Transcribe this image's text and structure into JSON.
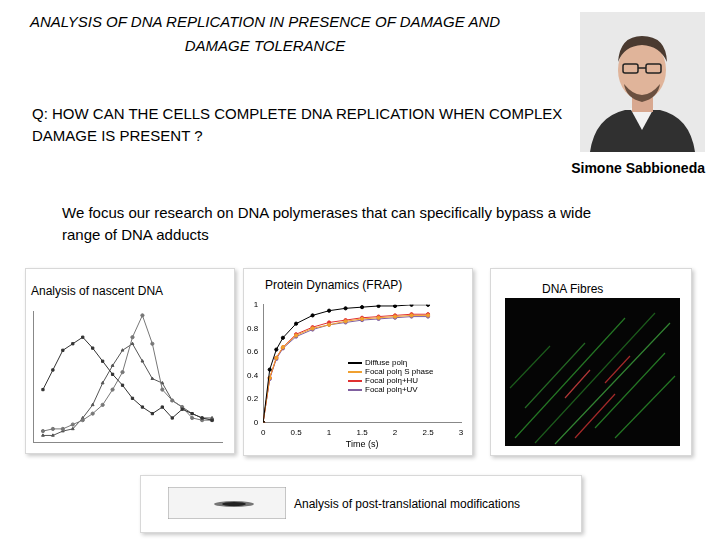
{
  "title": "ANALYSIS OF DNA REPLICATION IN PRESENCE OF DAMAGE AND DAMAGE TOLERANCE",
  "question": "Q: HOW CAN THE CELLS COMPLETE DNA REPLICATION WHEN COMPLEX DAMAGE IS PRESENT ?",
  "author": "Simone Sabbioneda",
  "description": "We focus our research on DNA polymerases that can specifically bypass a wide range of DNA adducts",
  "panels": {
    "fibres": "DNA Fibres",
    "blot": "Analysis  of post-translational modifications"
  },
  "chart_data": [
    {
      "type": "line",
      "title": "Analysis of nascent DNA",
      "x": [
        1,
        2,
        3,
        4,
        5,
        6,
        7,
        8,
        9,
        10,
        11,
        12,
        13,
        14,
        15,
        16,
        17,
        18
      ],
      "xlim": [
        0,
        19
      ],
      "xticks": [
        1,
        2,
        3,
        4,
        5,
        6,
        7,
        8,
        9,
        10,
        11,
        12,
        13,
        14,
        15,
        16,
        17,
        18
      ],
      "ylim": [
        0,
        6
      ],
      "yticks": [
        0,
        1,
        2,
        3,
        4,
        5,
        6
      ],
      "tick_labels": false,
      "grid": false,
      "series": [
        {
          "color": "#333333",
          "marker": "square",
          "values": [
            2.4,
            3.3,
            4.2,
            4.5,
            4.8,
            4.3,
            3.7,
            3.1,
            2.6,
            2.0,
            1.6,
            1.3,
            1.6,
            1.1,
            1.5,
            1.3,
            1.1,
            1.0
          ]
        },
        {
          "color": "#777777",
          "marker": "circle",
          "values": [
            0.5,
            0.6,
            0.6,
            0.8,
            1.0,
            1.3,
            1.7,
            2.4,
            3.2,
            4.8,
            5.8,
            4.5,
            2.4,
            1.9,
            1.6,
            1.1,
            1.0,
            1.0
          ]
        },
        {
          "color": "#555555",
          "marker": "triangle",
          "values": [
            0.3,
            0.3,
            0.5,
            0.6,
            1.1,
            1.7,
            2.7,
            3.5,
            4.2,
            4.5,
            3.7,
            2.9,
            2.7,
            1.9,
            1.6,
            1.3,
            1.1,
            1.1
          ]
        }
      ]
    },
    {
      "type": "line",
      "title": "Protein Dynamics (FRAP)",
      "x_label": "Time (s)",
      "x": [
        0,
        0.1,
        0.2,
        0.3,
        0.5,
        0.75,
        1,
        1.25,
        1.5,
        1.75,
        2,
        2.25,
        2.5
      ],
      "xlim": [
        0,
        3
      ],
      "xticks": [
        0,
        0.5,
        1,
        1.5,
        2,
        2.5,
        3
      ],
      "ylim": [
        0,
        1
      ],
      "yticks": [
        0,
        0.2,
        0.4,
        0.6,
        0.8,
        1
      ],
      "grid": false,
      "legend": "right",
      "series": [
        {
          "name": "Diffuse polη",
          "color": "#000000",
          "marker": "circle",
          "values": [
            0,
            0.45,
            0.62,
            0.72,
            0.84,
            0.91,
            0.95,
            0.97,
            0.98,
            0.99,
            0.99,
            1.0,
            1.0
          ]
        },
        {
          "name": "Focal polη S phase",
          "color": "#f0a030",
          "marker": "circle",
          "values": [
            0,
            0.38,
            0.55,
            0.64,
            0.74,
            0.8,
            0.83,
            0.86,
            0.88,
            0.89,
            0.9,
            0.91,
            0.91
          ]
        },
        {
          "name": "Focal polη+HU",
          "color": "#e03030",
          "marker": "circle",
          "values": [
            0,
            0.38,
            0.55,
            0.64,
            0.75,
            0.81,
            0.85,
            0.87,
            0.89,
            0.9,
            0.91,
            0.92,
            0.92
          ]
        },
        {
          "name": "Focal polη+UV",
          "color": "#8060a0",
          "marker": "circle",
          "values": [
            0,
            0.37,
            0.54,
            0.63,
            0.73,
            0.79,
            0.83,
            0.85,
            0.87,
            0.88,
            0.89,
            0.9,
            0.9
          ]
        }
      ]
    }
  ]
}
